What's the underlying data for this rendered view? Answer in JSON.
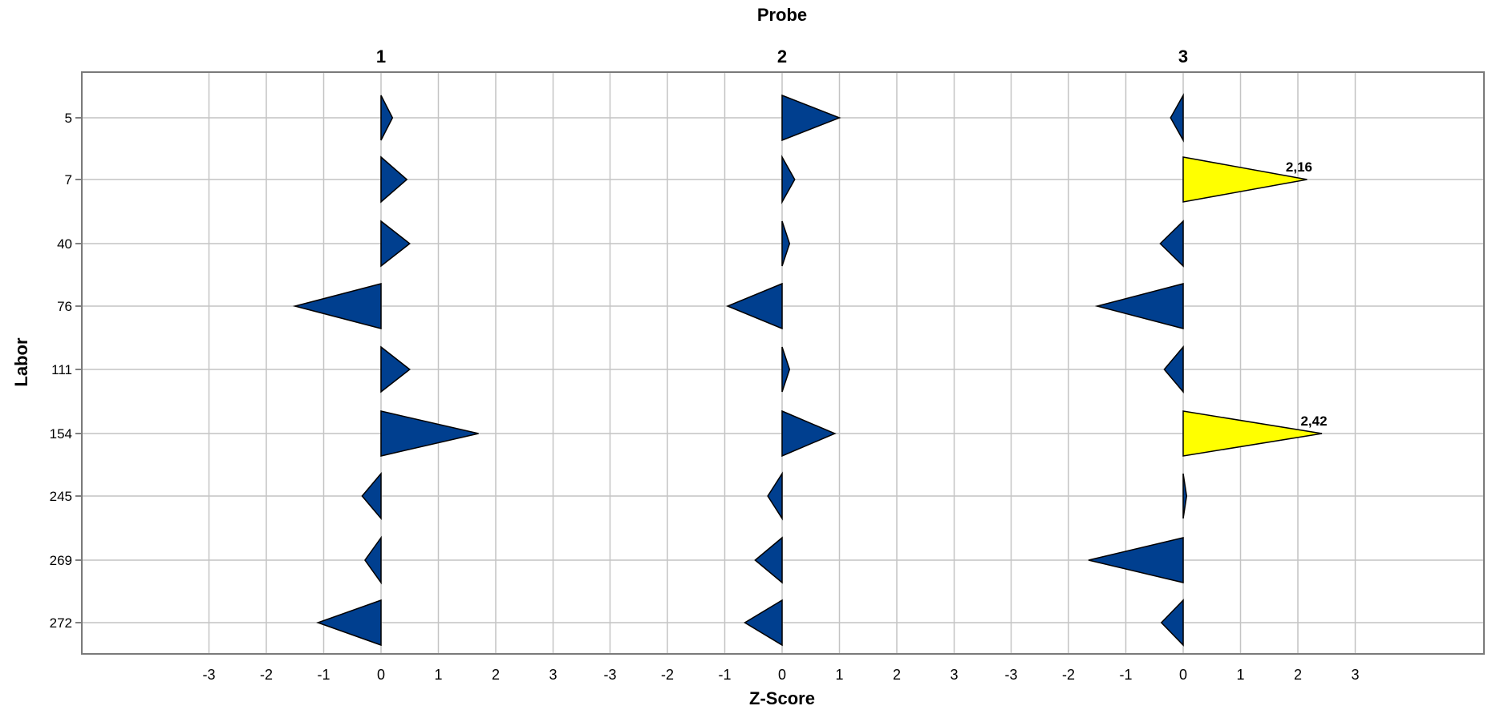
{
  "chart_data": {
    "type": "bar",
    "title": "Probe",
    "xlabel": "Z-Score",
    "ylabel": "Labor",
    "xlim": [
      -3,
      3
    ],
    "x_ticks": [
      "-3",
      "-2",
      "-1",
      "0",
      "1",
      "2",
      "3"
    ],
    "grid": true,
    "categories": [
      "5",
      "7",
      "40",
      "76",
      "111",
      "154",
      "245",
      "269",
      "272"
    ],
    "series": [
      {
        "name": "1",
        "values": [
          0.2,
          0.45,
          0.5,
          -1.5,
          0.5,
          1.7,
          -0.33,
          -0.28,
          -1.1
        ],
        "highlighted": [
          false,
          false,
          false,
          false,
          false,
          false,
          false,
          false,
          false
        ],
        "labels": [
          "",
          "",
          "",
          "",
          "",
          "",
          "",
          "",
          ""
        ]
      },
      {
        "name": "2",
        "values": [
          1.0,
          0.22,
          0.13,
          -0.95,
          0.13,
          0.92,
          -0.25,
          -0.47,
          -0.65
        ],
        "highlighted": [
          false,
          false,
          false,
          false,
          false,
          false,
          false,
          false,
          false
        ],
        "labels": [
          "",
          "",
          "",
          "",
          "",
          "",
          "",
          "",
          ""
        ]
      },
      {
        "name": "3",
        "values": [
          -0.22,
          2.16,
          -0.4,
          -1.5,
          -0.33,
          2.42,
          0.06,
          -1.65,
          -0.38
        ],
        "highlighted": [
          false,
          true,
          false,
          false,
          false,
          true,
          false,
          false,
          false
        ],
        "labels": [
          "",
          "2,16",
          "",
          "",
          "",
          "2,42",
          "",
          "",
          ""
        ]
      }
    ],
    "colors": {
      "normal_fill": "#003f8f",
      "highlight_fill": "#ffff00",
      "outline": "#000000",
      "grid": "#c4c4c4",
      "frame": "#7a7a7a"
    }
  }
}
